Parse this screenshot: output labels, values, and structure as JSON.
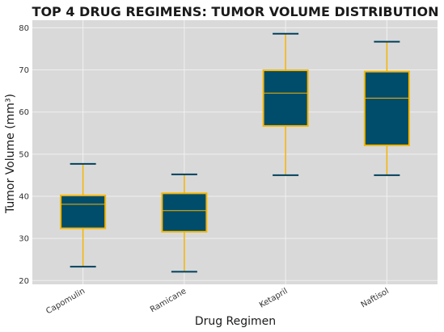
{
  "chart_data": {
    "type": "box",
    "title": "TOP 4 DRUG REGIMENS: TUMOR VOLUME DISTRIBUTION",
    "xlabel": "Drug Regimen",
    "ylabel": "Tumor Volume (mm³)",
    "categories": [
      "Capomulin",
      "Ramicane",
      "Ketapril",
      "Naftisol"
    ],
    "boxes": [
      {
        "name": "Capomulin",
        "whisker_low": 23.3,
        "q1": 32.4,
        "median": 38.1,
        "q3": 40.2,
        "whisker_high": 47.7
      },
      {
        "name": "Ramicane",
        "whisker_low": 22.1,
        "q1": 31.6,
        "median": 36.6,
        "q3": 40.7,
        "whisker_high": 45.2
      },
      {
        "name": "Ketapril",
        "whisker_low": 45.0,
        "q1": 56.7,
        "median": 64.5,
        "q3": 69.9,
        "whisker_high": 78.6
      },
      {
        "name": "Naftisol",
        "whisker_low": 45.0,
        "q1": 52.1,
        "median": 63.3,
        "q3": 69.6,
        "whisker_high": 76.7
      }
    ],
    "ylim": [
      19.1,
      81.8
    ],
    "yticks": [
      20,
      30,
      40,
      50,
      60,
      70,
      80
    ],
    "grid": true,
    "colors": {
      "box_fill": "#004c6b",
      "box_edge": "#f5b500",
      "whisker": "#f5b500",
      "cap": "#00405c",
      "median": "#f5b500",
      "plot_bg": "#d9d9d9",
      "grid": "#f0f0f0"
    }
  }
}
